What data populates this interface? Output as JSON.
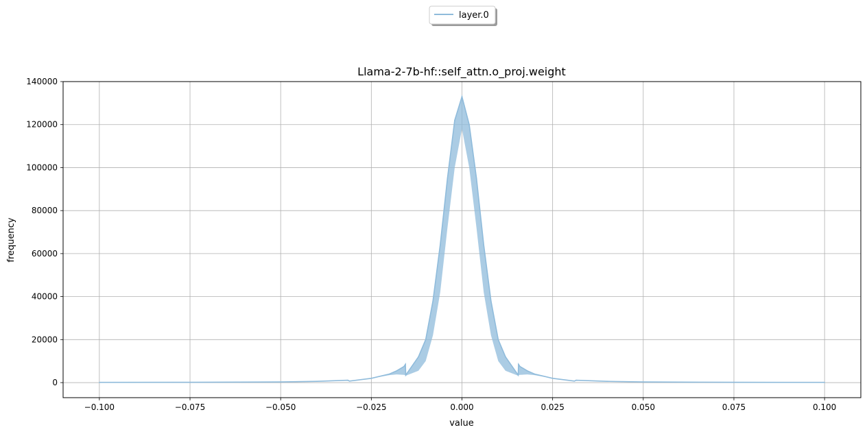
{
  "chart_data": {
    "type": "line",
    "title": "Llama-2-7b-hf::self_attn.o_proj.weight",
    "xlabel": "value",
    "ylabel": "frequency",
    "xlim": [
      -0.11,
      0.11
    ],
    "ylim": [
      -7000,
      140000
    ],
    "xticks": [
      -0.1,
      -0.075,
      -0.05,
      -0.025,
      0.0,
      0.025,
      0.05,
      0.075,
      0.1
    ],
    "xtick_labels": [
      "−0.100",
      "−0.075",
      "−0.050",
      "−0.025",
      "0.000",
      "0.025",
      "0.050",
      "0.075",
      "0.100"
    ],
    "yticks": [
      0,
      20000,
      40000,
      60000,
      80000,
      100000,
      120000,
      140000
    ],
    "ytick_labels": [
      "0",
      "20000",
      "40000",
      "60000",
      "80000",
      "100000",
      "120000",
      "140000"
    ],
    "grid": true,
    "legend_position": "top-center",
    "series": [
      {
        "name": "layer.0",
        "color": "#8fbbdb",
        "x": [
          -0.1,
          -0.075,
          -0.05,
          -0.04,
          -0.0315,
          -0.031,
          -0.025,
          -0.02,
          -0.018,
          -0.016,
          -0.0156,
          -0.0155,
          -0.012,
          -0.01,
          -0.008,
          -0.006,
          -0.004,
          -0.002,
          0.0,
          0.002,
          0.004,
          0.006,
          0.008,
          0.01,
          0.012,
          0.0155,
          0.0156,
          0.016,
          0.018,
          0.02,
          0.025,
          0.031,
          0.0315,
          0.04,
          0.05,
          0.075,
          0.1
        ],
        "y": [
          100,
          150,
          300,
          600,
          1100,
          700,
          2000,
          4000,
          5500,
          7500,
          8500,
          3500,
          12000,
          20000,
          38000,
          64000,
          95000,
          122000,
          133000,
          120000,
          95000,
          64000,
          38000,
          20000,
          12000,
          3500,
          8500,
          7500,
          5500,
          4000,
          2000,
          700,
          1100,
          600,
          300,
          150,
          100
        ],
        "band_low": [
          100,
          150,
          300,
          600,
          1100,
          700,
          2000,
          3500,
          3800,
          3600,
          3500,
          3200,
          5500,
          10000,
          22000,
          42000,
          72000,
          100000,
          118000,
          100000,
          72000,
          42000,
          22000,
          10000,
          5500,
          3200,
          3500,
          3600,
          3800,
          3500,
          2000,
          700,
          1100,
          600,
          300,
          150,
          100
        ]
      }
    ]
  }
}
